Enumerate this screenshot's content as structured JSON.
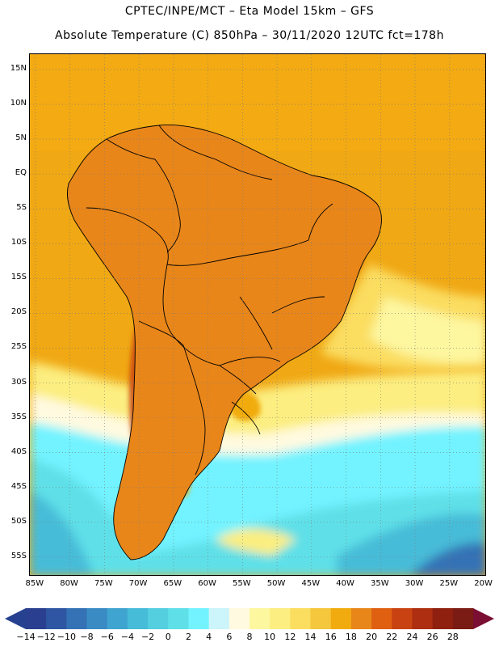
{
  "header": {
    "line1": "CPTEC/INPE/MCT –  Eta Model 15km – GFS",
    "line2": "Absolute Temperature (C) 850hPa – 30/11/2020 12UTC fct=178h"
  },
  "map": {
    "lat_ticks": [
      "15N",
      "10N",
      "5N",
      "EQ",
      "5S",
      "10S",
      "15S",
      "20S",
      "25S",
      "30S",
      "35S",
      "40S",
      "45S",
      "50S",
      "55S"
    ],
    "lon_ticks": [
      "85W",
      "80W",
      "75W",
      "70W",
      "65W",
      "60W",
      "55W",
      "50W",
      "45W",
      "40W",
      "35W",
      "30W",
      "25W",
      "20W"
    ],
    "lat_values": [
      15,
      10,
      5,
      0,
      -5,
      -10,
      -15,
      -20,
      -25,
      -30,
      -35,
      -40,
      -45,
      -50,
      -55
    ],
    "lon_values": [
      -85,
      -80,
      -75,
      -70,
      -65,
      -60,
      -55,
      -50,
      -45,
      -40,
      -35,
      -30,
      -25,
      -20
    ],
    "extent": {
      "lon_min": -85.8,
      "lon_max": -19.6,
      "lat_min": -57.8,
      "lat_max": 17.2
    }
  },
  "legend": {
    "labels": [
      "-14",
      "-12",
      "-10",
      "-8",
      "-6",
      "-4",
      "-2",
      "0",
      "2",
      "4",
      "6",
      "8",
      "10",
      "12",
      "14",
      "16",
      "18",
      "20",
      "22",
      "24",
      "26",
      "28"
    ],
    "colors": [
      "#2a3f8f",
      "#2f56a3",
      "#3472b5",
      "#3a8bc4",
      "#3fa4cf",
      "#46bcd8",
      "#53cfe0",
      "#5fe0e8",
      "#72f3ff",
      "#ccf4fb",
      "#fffae0",
      "#fdf7a0",
      "#fcee80",
      "#fbdd60",
      "#f5c73d",
      "#f1ab0f",
      "#e8861a",
      "#e06012",
      "#c94312",
      "#ad2e10",
      "#8f2010",
      "#7a1c14"
    ],
    "under_color": "#264190",
    "over_color": "#7a0e33"
  }
}
